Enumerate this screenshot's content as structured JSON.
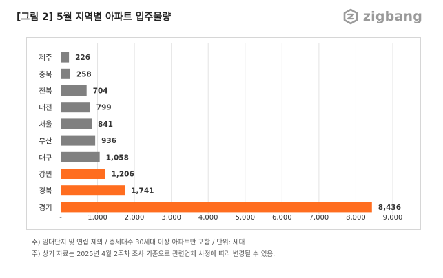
{
  "header": {
    "title": "[그림 2] 5월 지역별 아파트 입주물량",
    "brand": "zigbang"
  },
  "colors": {
    "gray_bar": "#808080",
    "orange_bar": "#ff6d1f",
    "grid": "#e3e3e3",
    "text": "#333333"
  },
  "chart_data": {
    "type": "bar",
    "orientation": "horizontal",
    "categories": [
      "제주",
      "충북",
      "전북",
      "대전",
      "서울",
      "부산",
      "대구",
      "강원",
      "경북",
      "경기"
    ],
    "values": [
      226,
      258,
      704,
      799,
      841,
      936,
      1058,
      1206,
      1741,
      8436
    ],
    "value_labels": [
      "226",
      "258",
      "704",
      "799",
      "841",
      "936",
      "1,058",
      "1,206",
      "1,741",
      "8,436"
    ],
    "bar_colors": [
      "gray",
      "gray",
      "gray",
      "gray",
      "gray",
      "gray",
      "gray",
      "orange",
      "orange",
      "orange"
    ],
    "xlim": [
      0,
      9000
    ],
    "x_ticks": [
      "-",
      "1,000",
      "2,000",
      "3,000",
      "4,000",
      "5,000",
      "6,000",
      "7,000",
      "8,000",
      "9,000"
    ],
    "grid": "vertical",
    "title": "[그림 2] 5월 지역별 아파트 입주물량",
    "xlabel": "",
    "ylabel": ""
  },
  "notes": [
    "주) 임대단지 및 연립 제외 / 총세대수 30세대 이상 아파트만 포함 / 단위: 세대",
    "주) 상기 자료는 2025년 4월 2주차 조사 기준으로 관련업체 사정에 따라 변경될 수 있음."
  ]
}
